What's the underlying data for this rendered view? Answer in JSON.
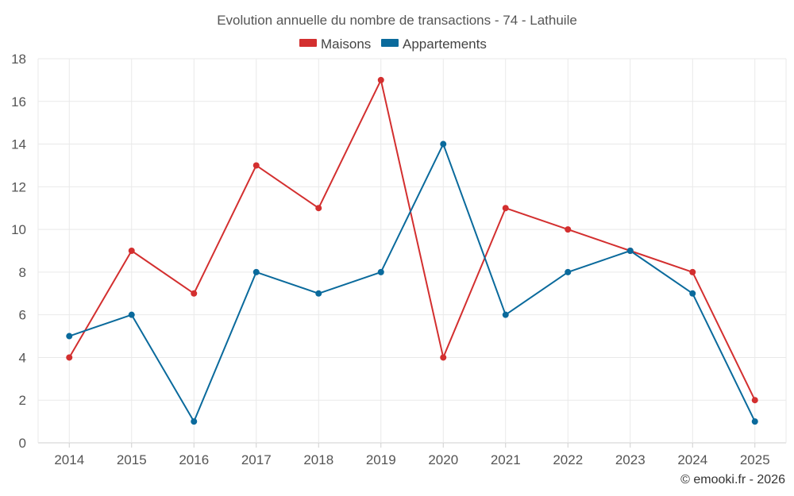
{
  "chart_data": {
    "type": "line",
    "title": "Evolution annuelle du nombre de transactions - 74 - Lathuile",
    "categories": [
      "2014",
      "2015",
      "2016",
      "2017",
      "2018",
      "2019",
      "2020",
      "2021",
      "2022",
      "2023",
      "2024",
      "2025"
    ],
    "series": [
      {
        "name": "Maisons",
        "color": "#d32f2f",
        "values": [
          4,
          9,
          7,
          13,
          11,
          17,
          4,
          11,
          10,
          9,
          8,
          2
        ]
      },
      {
        "name": "Appartements",
        "color": "#0a6a9c",
        "values": [
          5,
          6,
          1,
          8,
          7,
          8,
          14,
          6,
          8,
          9,
          7,
          1
        ]
      }
    ],
    "ylim": [
      0,
      18
    ],
    "yticks": [
      0,
      2,
      4,
      6,
      8,
      10,
      12,
      14,
      16,
      18
    ],
    "xlabel": "",
    "ylabel": "",
    "grid": true,
    "legend": "top-center"
  },
  "credit": "© emooki.fr - 2026"
}
